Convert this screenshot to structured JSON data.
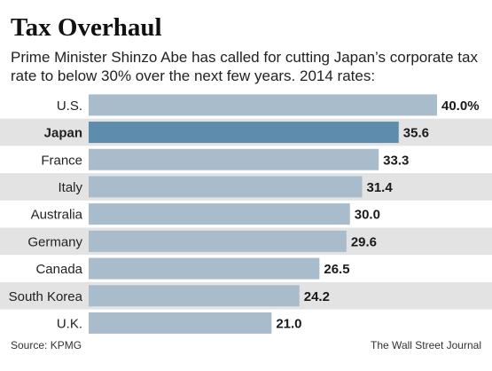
{
  "header": {
    "title": "Tax Overhaul",
    "subtitle": "Prime Minister Shinzo Abe has called for cutting Japan’s corporate tax rate to below 30% over the next few years. 2014 rates:"
  },
  "footer": {
    "source": "Source: KPMG",
    "credit": "The Wall Street Journal"
  },
  "colors": {
    "bar": "#a9bccc",
    "highlight_bar": "#5e8cad",
    "stripe": "#e3e3e3"
  },
  "chart_data": {
    "type": "bar",
    "orientation": "horizontal",
    "categories": [
      "U.S.",
      "Japan",
      "France",
      "Italy",
      "Australia",
      "Germany",
      "Canada",
      "South Korea",
      "U.K."
    ],
    "values": [
      40.0,
      35.6,
      33.3,
      31.4,
      30.0,
      29.6,
      26.5,
      24.2,
      21.0
    ],
    "value_labels": [
      "40.0%",
      "35.6",
      "33.3",
      "31.4",
      "30.0",
      "29.6",
      "26.5",
      "24.2",
      "21.0"
    ],
    "highlight": "Japan",
    "xlim": [
      0,
      40
    ],
    "grid": false
  }
}
